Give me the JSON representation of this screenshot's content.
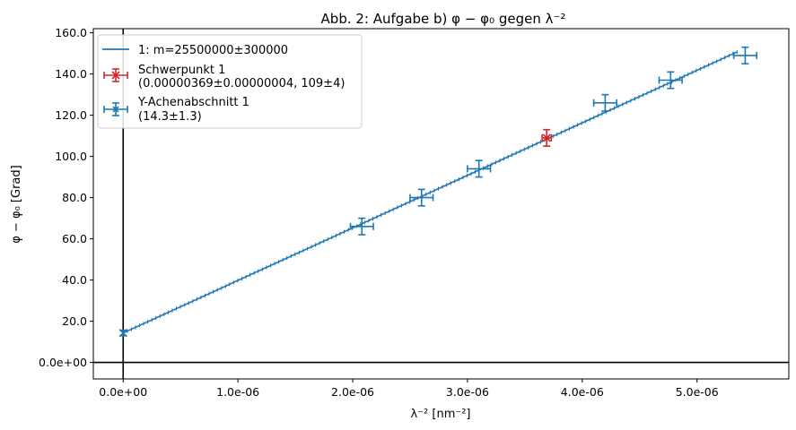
{
  "chart_data": {
    "type": "scatter",
    "title": "Abb. 2: Aufgabe b) φ − φ₀ gegen λ⁻²",
    "xlabel": "λ⁻² [nm⁻²]",
    "ylabel": "φ − φ₀ [Grad]",
    "xlim": [
      -2.6e-07,
      5.8e-06
    ],
    "ylim": [
      -8,
      162
    ],
    "grid": false,
    "legend_position": "top-left",
    "x_ticks": [
      0,
      1e-06,
      2e-06,
      3e-06,
      4e-06,
      5e-06
    ],
    "x_tick_labels": [
      "0.0e+00",
      "1.0e-06",
      "2.0e-06",
      "3.0e-06",
      "4.0e-06",
      "5.0e-06"
    ],
    "y_ticks": [
      0,
      20,
      40,
      60,
      80,
      100,
      120,
      140,
      160
    ],
    "y_tick_labels": [
      "0.0e+00",
      "20.0",
      "40.0",
      "60.0",
      "80.0",
      "100.0",
      "120.0",
      "140.0",
      "160.0"
    ],
    "colors": {
      "series": "#1f77b4",
      "centroid": "#d62728",
      "axes": "#000000"
    },
    "series": [
      {
        "kind": "errorbar",
        "x": [
          2.08e-06,
          2.6e-06,
          3.1e-06,
          4.2e-06,
          4.77e-06,
          5.42e-06
        ],
        "y": [
          66,
          80,
          94,
          126,
          137,
          149
        ],
        "xerr": [
          1e-07,
          1e-07,
          1e-07,
          1e-07,
          1e-07,
          1e-07
        ],
        "yerr": [
          4,
          4,
          4,
          4,
          4,
          4
        ]
      },
      {
        "kind": "fit_line",
        "name": "1: m=25500000±300000",
        "slope": 25500000,
        "intercept": 14.3,
        "x_range": [
          0,
          5.35e-06
        ]
      },
      {
        "kind": "centroid",
        "name": "Schwerpunkt 1",
        "detail": "(0.00000369±0.00000004, 109±4)",
        "x": 3.69e-06,
        "y": 109,
        "xerr": 4e-08,
        "yerr": 4
      },
      {
        "kind": "intercept",
        "name": "Y-Achenabschnitt 1",
        "detail": "(14.3±1.3)",
        "x": 0,
        "y": 14.3,
        "yerr": 1.3
      }
    ]
  }
}
